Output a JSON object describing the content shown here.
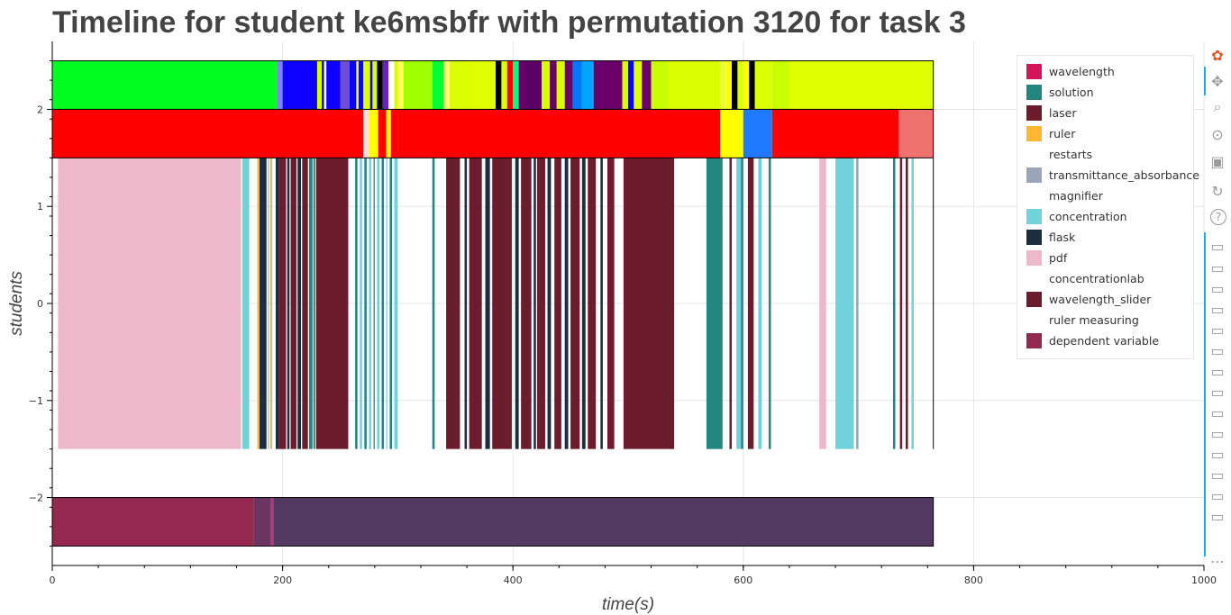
{
  "title": "Timeline for student ke6msbfr with permutation 3120 for task 3",
  "colors": {
    "wavelength": "#d4145a",
    "solution": "#23857f",
    "laser": "#6b1d2e",
    "ruler": "#ffb732",
    "transmittance_absorbance": "#9aa6b8",
    "concentration": "#72d2dc",
    "flask": "#1c2d40",
    "pdf": "#eeb8cb",
    "wavelength_slider": "#6b1d2e",
    "dependent_variable": "#93294e"
  },
  "chart_data": {
    "type": "timeline",
    "title": "Timeline for student ke6msbfr with permutation 3120 for task 3",
    "xlabel": "time(s)",
    "ylabel": "students",
    "xlim": [
      0,
      1000
    ],
    "ylim": [
      -2.7,
      2.7
    ],
    "grid": true,
    "legend_position": "top-right",
    "x_ticks": [
      0,
      200,
      400,
      600,
      800,
      1000
    ],
    "y_ticks": [
      2,
      1,
      0,
      -1,
      -2
    ],
    "x_tick_labels": [
      "0",
      "200",
      "400",
      "600",
      "800",
      "1000"
    ],
    "y_tick_labels": [
      "2",
      "1",
      "0",
      "−1",
      "−2"
    ],
    "legend": [
      {
        "label": "wavelength",
        "color": "#d4145a"
      },
      {
        "label": "solution",
        "color": "#23857f"
      },
      {
        "label": "laser",
        "color": "#6b1d2e"
      },
      {
        "label": "ruler",
        "color": "#ffb732"
      },
      {
        "label": "restarts",
        "color": ""
      },
      {
        "label": "transmittance_absorbance",
        "color": "#9aa6b8"
      },
      {
        "label": "magnifier",
        "color": ""
      },
      {
        "label": "concentration",
        "color": "#72d2dc"
      },
      {
        "label": "flask",
        "color": "#1c2d40"
      },
      {
        "label": "pdf",
        "color": "#eeb8cb"
      },
      {
        "label": "concentrationlab",
        "color": ""
      },
      {
        "label": "wavelength_slider",
        "color": "#6b1d2e"
      },
      {
        "label": "ruler measuring",
        "color": ""
      },
      {
        "label": "dependent variable",
        "color": "#93294e"
      }
    ],
    "rows": [
      {
        "y0": 2.0,
        "y1": 2.5,
        "segments": [
          [
            0,
            195,
            "#00ff20"
          ],
          [
            195,
            200,
            "#8080ff"
          ],
          [
            200,
            230,
            "#0d00ff"
          ],
          [
            230,
            234,
            "#d9ff00"
          ],
          [
            234,
            236,
            "#0d00ff"
          ],
          [
            236,
            238,
            "#ffffff"
          ],
          [
            238,
            250,
            "#0d00ff"
          ],
          [
            250,
            258,
            "#6e4fd4"
          ],
          [
            258,
            264,
            "#0d00ff"
          ],
          [
            264,
            266,
            "#ffff00"
          ],
          [
            266,
            270,
            "#0d00ff"
          ],
          [
            270,
            276,
            "#d9ff00"
          ],
          [
            276,
            280,
            "#0d00ff"
          ],
          [
            280,
            278,
            "#ffffff"
          ],
          [
            278,
            282,
            "#d9ff00"
          ],
          [
            282,
            287,
            "#000000"
          ],
          [
            287,
            292,
            "#6e1fbf"
          ],
          [
            292,
            297,
            "#ffffff"
          ],
          [
            297,
            300,
            "#d9ff00"
          ],
          [
            300,
            305,
            "#ffff55"
          ],
          [
            305,
            330,
            "#a0ff00"
          ],
          [
            330,
            340,
            "#00ff30"
          ],
          [
            340,
            345,
            "#ffff66"
          ],
          [
            345,
            365,
            "#d9ff00"
          ],
          [
            365,
            385,
            "#e0ff00"
          ],
          [
            385,
            390,
            "#000000"
          ],
          [
            390,
            395,
            "#d9ff00"
          ],
          [
            395,
            400,
            "#ff0000"
          ],
          [
            400,
            405,
            "#00ff80"
          ],
          [
            405,
            410,
            "#6b006b"
          ],
          [
            410,
            425,
            "#5c0066"
          ],
          [
            425,
            432,
            "#d9ff00"
          ],
          [
            432,
            438,
            "#6b006b"
          ],
          [
            438,
            445,
            "#d9ff00"
          ],
          [
            445,
            452,
            "#6b006b"
          ],
          [
            452,
            460,
            "#0077ff"
          ],
          [
            460,
            470,
            "#00a6ff"
          ],
          [
            470,
            495,
            "#6b006b"
          ],
          [
            495,
            500,
            "#d9ff00"
          ],
          [
            500,
            505,
            "#0d00ff"
          ],
          [
            505,
            512,
            "#d9ff00"
          ],
          [
            512,
            520,
            "#6b006b"
          ],
          [
            520,
            535,
            "#c8ff00"
          ],
          [
            535,
            580,
            "#d9ff00"
          ],
          [
            580,
            585,
            "#e8ff3a"
          ],
          [
            585,
            590,
            "#ffff00"
          ],
          [
            590,
            595,
            "#000000"
          ],
          [
            595,
            600,
            "#d9ff00"
          ],
          [
            600,
            605,
            "#ffff00"
          ],
          [
            605,
            610,
            "#000000"
          ],
          [
            610,
            625,
            "#d9ff00"
          ],
          [
            625,
            640,
            "#c8ff00"
          ],
          [
            640,
            765,
            "#e0ff00"
          ]
        ]
      },
      {
        "y0": 1.5,
        "y1": 2.0,
        "segments": [
          [
            0,
            270,
            "#ff0000"
          ],
          [
            270,
            275,
            "#ffe0e0"
          ],
          [
            275,
            283,
            "#ffff00"
          ],
          [
            283,
            290,
            "#ff0000"
          ],
          [
            290,
            294,
            "#ffff00"
          ],
          [
            294,
            300,
            "#ff0000"
          ],
          [
            300,
            580,
            "#ff0000"
          ],
          [
            580,
            600,
            "#ffff00"
          ],
          [
            600,
            625,
            "#1f7aff"
          ],
          [
            625,
            735,
            "#ff0000"
          ],
          [
            735,
            765,
            "#f0726e"
          ]
        ]
      },
      {
        "y0": -1.5,
        "y1": 1.5,
        "segments": [
          [
            5,
            164,
            "#eeb8cb"
          ],
          [
            165,
            171,
            "#72d2dc"
          ],
          [
            178,
            180,
            "#ffb732"
          ],
          [
            180,
            186,
            "#1c2d40"
          ],
          [
            187,
            188,
            "#72d2dc"
          ],
          [
            189,
            190,
            "#ffb732"
          ],
          [
            190,
            191,
            "#72d2dc"
          ],
          [
            194,
            197,
            "#1c2d40"
          ],
          [
            197,
            203,
            "#6b1d2e"
          ],
          [
            204,
            206,
            "#1c2d40"
          ],
          [
            207,
            212,
            "#6b1d2e"
          ],
          [
            213,
            216,
            "#1c2d40"
          ],
          [
            217,
            222,
            "#6b1d2e"
          ],
          [
            223,
            226,
            "#23857f"
          ],
          [
            227,
            228,
            "#1c2d40"
          ],
          [
            229,
            257,
            "#6b1d2e"
          ],
          [
            263,
            265,
            "#23857f"
          ],
          [
            267,
            269,
            "#72d2dc"
          ],
          [
            271,
            273,
            "#23857f"
          ],
          [
            275,
            277,
            "#72d2dc"
          ],
          [
            279,
            280,
            "#23857f"
          ],
          [
            282,
            284,
            "#72d2dc"
          ],
          [
            286,
            288,
            "#23857f"
          ],
          [
            290,
            291,
            "#72d2dc"
          ],
          [
            293,
            295,
            "#23857f"
          ],
          [
            297,
            300,
            "#72d2dc"
          ],
          [
            330,
            332,
            "#23857f"
          ],
          [
            342,
            354,
            "#6b1d2e"
          ],
          [
            358,
            360,
            "#1c2d40"
          ],
          [
            362,
            373,
            "#6b1d2e"
          ],
          [
            376,
            380,
            "#1c2d40"
          ],
          [
            382,
            399,
            "#6b1d2e"
          ],
          [
            402,
            405,
            "#1c2d40"
          ],
          [
            407,
            416,
            "#6b1d2e"
          ],
          [
            418,
            420,
            "#1c2d40"
          ],
          [
            421,
            428,
            "#6b1d2e"
          ],
          [
            430,
            433,
            "#1c2d40"
          ],
          [
            436,
            442,
            "#6b1d2e"
          ],
          [
            445,
            448,
            "#1c2d40"
          ],
          [
            450,
            458,
            "#6b1d2e"
          ],
          [
            460,
            463,
            "#1c2d40"
          ],
          [
            465,
            472,
            "#6b1d2e"
          ],
          [
            476,
            478,
            "#1c2d40"
          ],
          [
            482,
            488,
            "#6b1d2e"
          ],
          [
            496,
            540,
            "#6b1d2e"
          ],
          [
            568,
            582,
            "#23857f"
          ],
          [
            588,
            590,
            "#6b1d2e"
          ],
          [
            594,
            598,
            "#72d2dc"
          ],
          [
            598,
            600,
            "#23857f"
          ],
          [
            604,
            609,
            "#6b1d2e"
          ],
          [
            613,
            616,
            "#72d2dc"
          ],
          [
            622,
            624,
            "#23857f"
          ],
          [
            666,
            672,
            "#eeb8cb"
          ],
          [
            680,
            696,
            "#72d2dc"
          ],
          [
            698,
            700,
            "#9aa6b8"
          ],
          [
            730,
            732,
            "#23857f"
          ],
          [
            736,
            738,
            "#6b1d2e"
          ],
          [
            741,
            743,
            "#6b1d2e"
          ],
          [
            746,
            748,
            "#72d2dc"
          ]
        ]
      },
      {
        "y0": -2.5,
        "y1": -2.0,
        "segments": [
          [
            0,
            175,
            "#93294e"
          ],
          [
            175,
            190,
            "#6a3560"
          ],
          [
            190,
            192,
            "#b03a7a"
          ],
          [
            192,
            765,
            "#523a63"
          ]
        ]
      }
    ],
    "row_outlines": [
      [
        2.0,
        2.5
      ],
      [
        1.5,
        2.0
      ],
      [
        -2.5,
        -2.0
      ]
    ],
    "block_right": 765
  },
  "toolbar": {
    "tools": [
      "bokeh-logo-icon",
      "pan-icon",
      "box-zoom-icon",
      "wheel-zoom-icon",
      "save-icon",
      "reset-icon",
      "help-icon",
      "hover-icon",
      "hover-icon",
      "hover-icon",
      "hover-icon",
      "hover-icon",
      "hover-icon",
      "hover-icon",
      "hover-icon",
      "hover-icon",
      "hover-icon",
      "hover-icon",
      "hover-icon",
      "hover-icon",
      "hover-icon",
      "more-icon"
    ],
    "more": "⋯"
  }
}
